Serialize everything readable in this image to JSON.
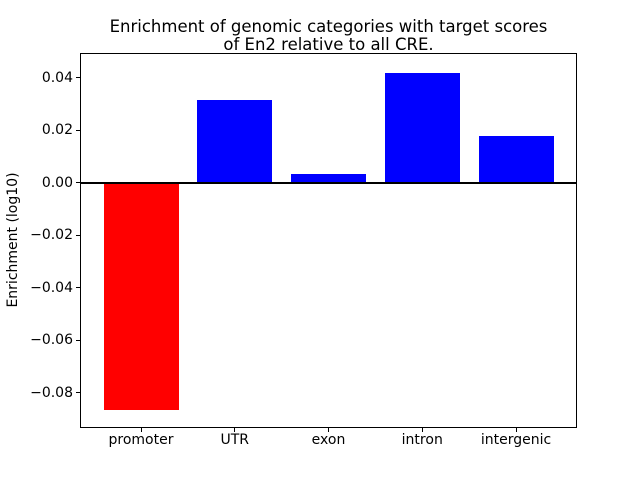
{
  "title": {
    "line1": "Enrichment of genomic categories with target scores",
    "line2": "of En2 relative to all CRE."
  },
  "chart_data": {
    "type": "bar",
    "title": "Enrichment of genomic categories with target scores\nof En2 relative to all CRE.",
    "categories": [
      "promoter",
      "UTR",
      "exon",
      "intron",
      "intergenic"
    ],
    "values": [
      -0.0864,
      0.0314,
      0.0033,
      0.0416,
      0.0178
    ],
    "bar_colors": [
      "#ff0000",
      "#0000ff",
      "#0000ff",
      "#0000ff",
      "#0000ff"
    ],
    "negative_color": "#ff0000",
    "positive_color": "#0000ff",
    "xlabel": "",
    "ylabel": "Enrichment (log10)",
    "ylim": [
      -0.093,
      0.049
    ],
    "xlim": [
      -0.64,
      4.64
    ],
    "bar_width": 0.8,
    "yticks": [
      0.04,
      0.02,
      0,
      -0.02,
      -0.04,
      -0.06,
      -0.08
    ],
    "ytick_labels": [
      "0.04",
      "0.02",
      "0.00",
      "−0.02",
      "−0.04",
      "−0.06",
      "−0.08"
    ],
    "grid": false,
    "legend": null,
    "zero_line": {
      "value": 0,
      "color": "#000000",
      "linewidth": 2
    },
    "background_color": "#ffffff",
    "text_color": "#000000"
  }
}
